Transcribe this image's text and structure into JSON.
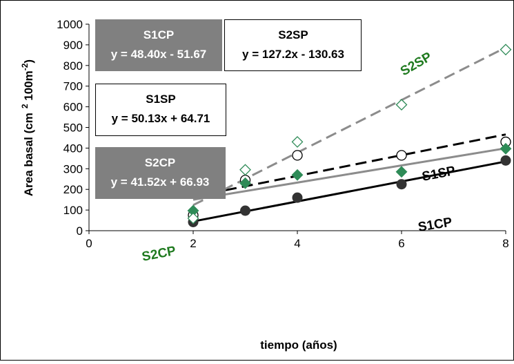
{
  "chart_data": {
    "type": "scatter",
    "xlabel": "tiempo (años)",
    "ylabel_main": "Area basal (cm",
    "ylabel_sup1": "2",
    "ylabel_mid": " 100m",
    "ylabel_sup2": "-2",
    "ylabel_end": ")",
    "xlim": [
      0,
      8
    ],
    "ylim": [
      0,
      1000
    ],
    "x_ticks": [
      0,
      2,
      4,
      6,
      8
    ],
    "y_ticks": [
      0,
      100,
      200,
      300,
      400,
      500,
      600,
      700,
      800,
      900,
      1000
    ],
    "grid": false,
    "series": [
      {
        "name": "S1CP",
        "marker": "filled-circle",
        "color": "#333333",
        "line_color": "#000000",
        "line_style": "solid",
        "x": [
          2,
          3,
          4,
          6,
          8
        ],
        "y": [
          42,
          97,
          160,
          225,
          340
        ],
        "trend_x": [
          2,
          8
        ],
        "trend_y": [
          45,
          335
        ],
        "equation": "y = 48.40x - 51.67",
        "label_color": "#000000"
      },
      {
        "name": "S1SP",
        "marker": "open-circle",
        "color": "#000000",
        "line_color": "#000000",
        "line_style": "dashed",
        "x": [
          2,
          3,
          4,
          6,
          8
        ],
        "y": [
          75,
          245,
          365,
          365,
          430
        ],
        "trend_x": [
          2,
          8
        ],
        "trend_y": [
          165,
          466
        ],
        "equation": "y = 50.13x + 64.71",
        "label_color": "#000000"
      },
      {
        "name": "S2CP",
        "marker": "filled-diamond",
        "color": "#2e8b57",
        "line_color": "#8c8c8c",
        "line_style": "solid",
        "x": [
          2,
          3,
          4,
          6,
          8
        ],
        "y": [
          97,
          230,
          270,
          285,
          397
        ],
        "trend_x": [
          2,
          8
        ],
        "trend_y": [
          150,
          399
        ],
        "equation": "y = 41.52x + 66.93",
        "label_color": "#1f7a1f"
      },
      {
        "name": "S2SP",
        "marker": "open-diamond",
        "color": "#2e8b57",
        "line_color": "#8c8c8c",
        "line_style": "dashed",
        "x": [
          2,
          3,
          4,
          6,
          8
        ],
        "y": [
          60,
          295,
          430,
          610,
          877
        ],
        "trend_x": [
          2,
          8
        ],
        "trend_y": [
          124,
          887
        ],
        "equation": "y = 127.2x - 130.63",
        "label_color": "#1f7a1f"
      }
    ]
  }
}
